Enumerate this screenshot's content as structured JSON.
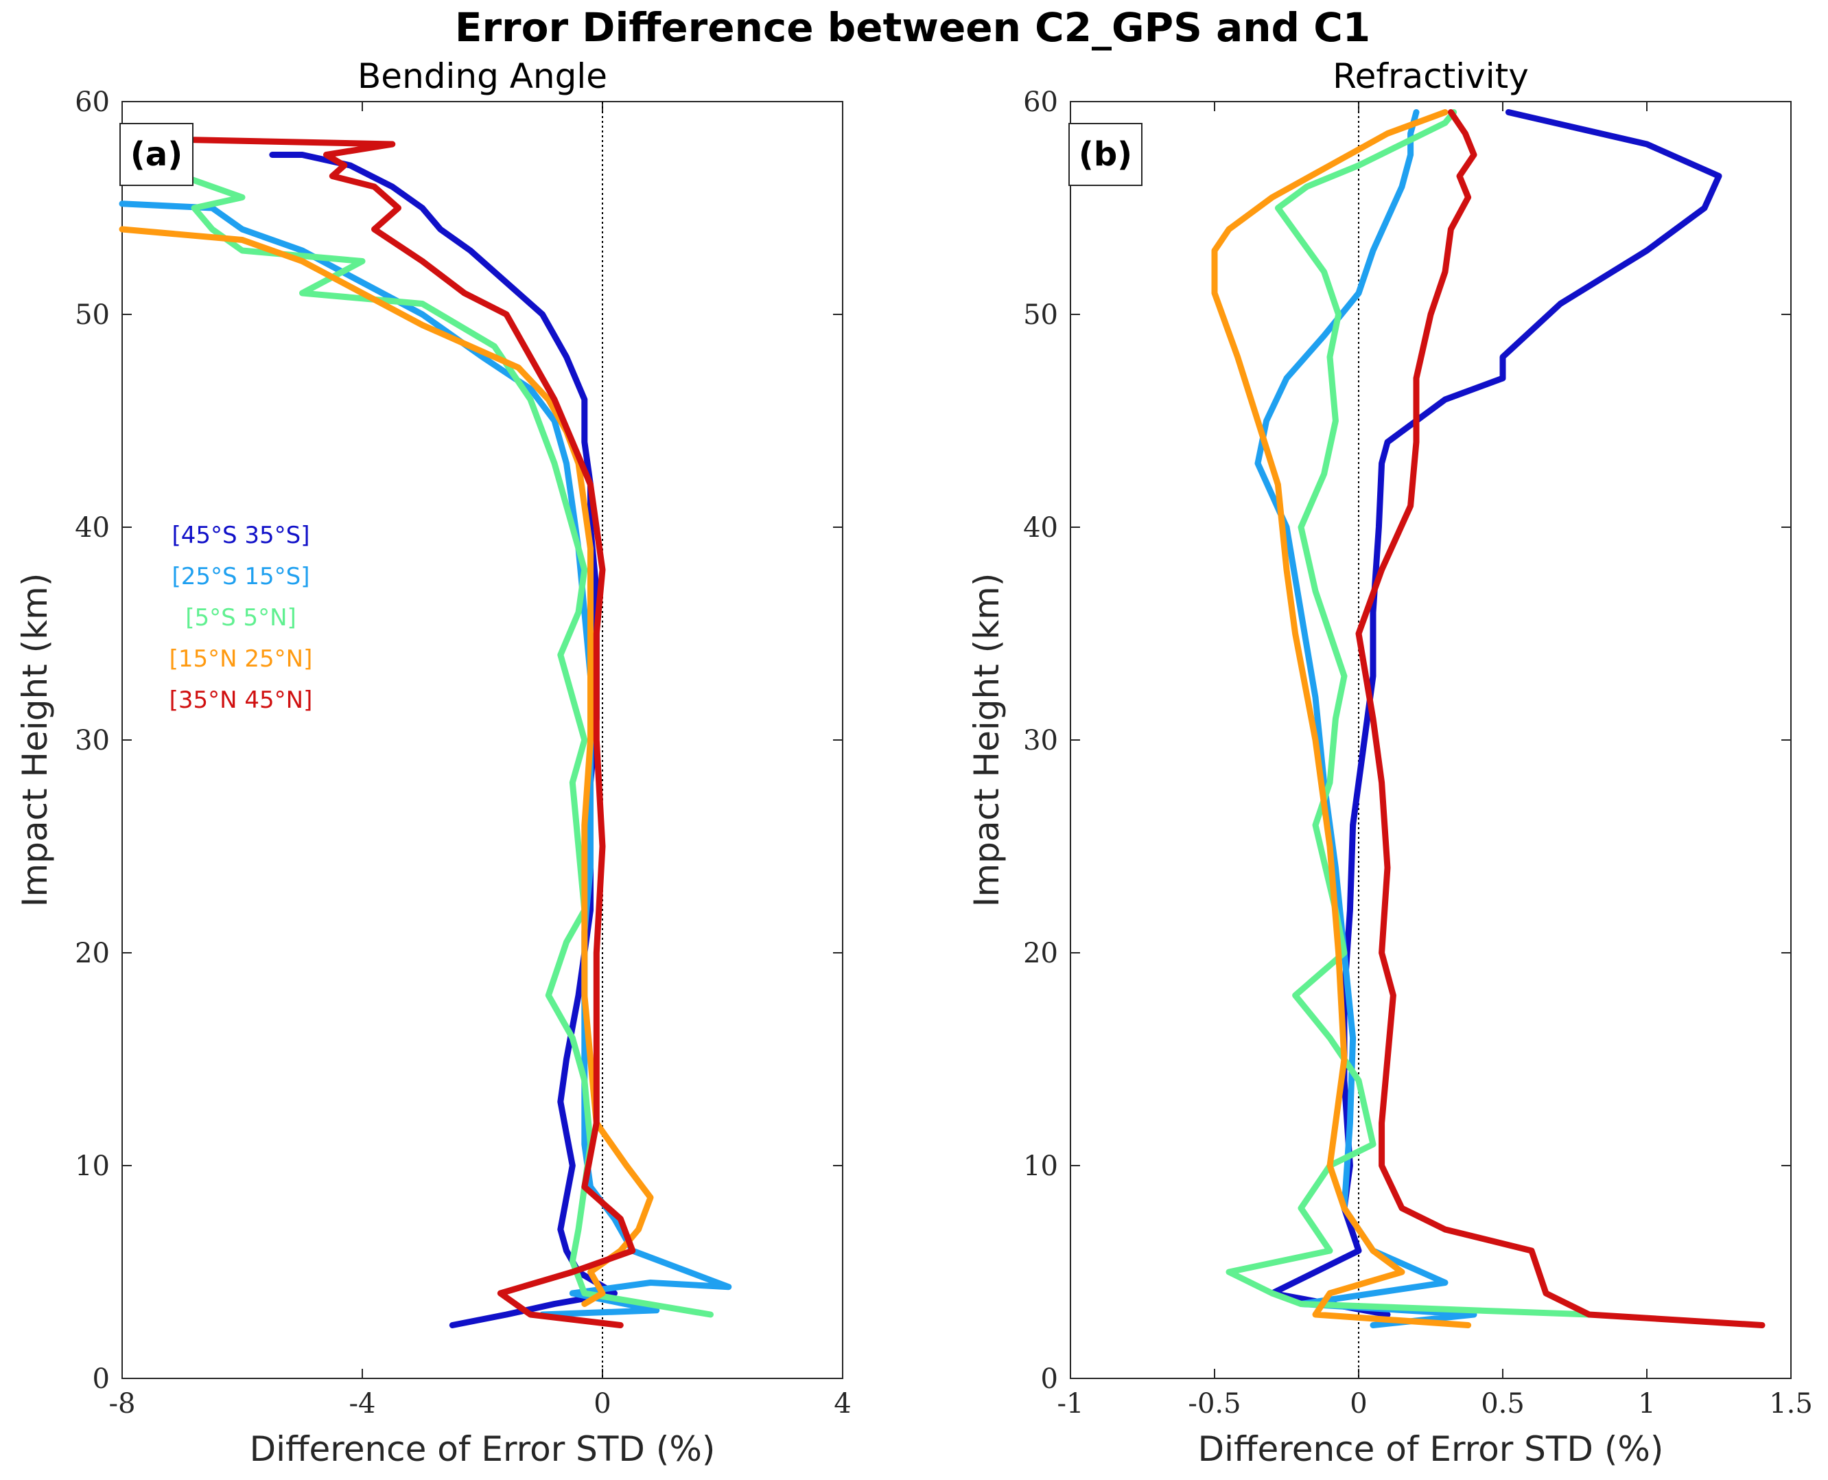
{
  "figure": {
    "title": "Error Difference between C2_GPS and C1"
  },
  "legend": {
    "entries": [
      {
        "label": "[45°S 35°S]",
        "color": "#1010c8"
      },
      {
        "label": "[25°S 15°S]",
        "color": "#1fa0f0"
      },
      {
        "label": "[5°S 5°N]",
        "color": "#60f090"
      },
      {
        "label": "[15°N 25°N]",
        "color": "#ff9a10"
      },
      {
        "label": "[35°N 45°N]",
        "color": "#d01010"
      }
    ]
  },
  "chart_data": [
    {
      "type": "line",
      "panel": "(a)",
      "title": "Bending Angle",
      "xlabel": "Difference of Error STD (%)",
      "ylabel": "Impact Height (km)",
      "xlim": [
        -8,
        4
      ],
      "ylim": [
        0,
        60
      ],
      "xticks": [
        "-8",
        "-4",
        "0",
        "4"
      ],
      "yticks": [
        "0",
        "10",
        "20",
        "30",
        "40",
        "50",
        "60"
      ],
      "zero_line": true,
      "series": [
        {
          "name": "[45°S 35°S]",
          "color": "#1010c8",
          "x": [
            -2.5,
            -1.6,
            -0.8,
            0.2,
            -0.4,
            -0.6,
            -0.7,
            -0.6,
            -0.5,
            -0.6,
            -0.7,
            -0.6,
            -0.4,
            -0.3,
            -0.2,
            -0.2,
            -0.2,
            -0.1,
            -0.1,
            -0.1,
            -0.2,
            -0.2,
            -0.3,
            -0.3,
            -0.6,
            -1.0,
            -1.6,
            -2.2,
            -2.7,
            -3.0,
            -3.5,
            -4.2,
            -5.0,
            -5.5
          ],
          "y": [
            2.5,
            3.0,
            3.5,
            4.0,
            5.0,
            6.0,
            7.0,
            8.5,
            10.0,
            11.5,
            13.0,
            15.0,
            18.0,
            20.0,
            22.0,
            25.0,
            28.0,
            31.0,
            34.0,
            37.0,
            40.0,
            42.0,
            44.0,
            46.0,
            48.0,
            50.0,
            51.5,
            53.0,
            54.0,
            55.0,
            56.0,
            57.0,
            57.5,
            57.5
          ]
        },
        {
          "name": "[25°S 15°S]",
          "color": "#1fa0f0",
          "x": [
            -1.0,
            0.9,
            -0.5,
            0.8,
            2.1,
            0.5,
            0.2,
            -0.2,
            -0.3,
            -0.3,
            -0.3,
            -0.3,
            -0.3,
            -0.2,
            -0.2,
            -0.2,
            -0.2,
            -0.3,
            -0.4,
            -0.5,
            -0.6,
            -0.8,
            -1.2,
            -2.0,
            -3.0,
            -4.0,
            -5.0,
            -6.0,
            -6.5,
            -8.0
          ],
          "y": [
            3.0,
            3.2,
            4.0,
            4.5,
            4.3,
            6.0,
            7.5,
            9.0,
            11.0,
            13.0,
            15.0,
            18.0,
            21.0,
            24.0,
            27.0,
            30.0,
            33.0,
            36.0,
            39.0,
            41.0,
            43.0,
            45.0,
            46.5,
            48.0,
            50.0,
            51.5,
            53.0,
            54.0,
            55.0,
            55.2
          ]
        },
        {
          "name": "[5°S 5°N]",
          "color": "#60f090",
          "x": [
            1.8,
            -0.3,
            -0.5,
            -0.4,
            -0.3,
            -0.2,
            -0.3,
            -0.5,
            -0.9,
            -0.6,
            -0.3,
            -0.4,
            -0.5,
            -0.3,
            -0.5,
            -0.7,
            -0.4,
            -0.3,
            -0.5,
            -0.8,
            -1.2,
            -1.8,
            -3.0,
            -5.0,
            -4.0,
            -6.0,
            -6.5,
            -6.8,
            -6.0,
            -7.0
          ],
          "y": [
            3.0,
            4.0,
            5.5,
            7.0,
            9.0,
            11.0,
            14.0,
            16.0,
            18.0,
            20.5,
            22.0,
            25.0,
            28.0,
            30.0,
            32.0,
            34.0,
            36.0,
            38.0,
            40.0,
            43.0,
            46.0,
            48.5,
            50.5,
            51.0,
            52.5,
            53.0,
            54.0,
            55.0,
            55.5,
            56.5
          ]
        },
        {
          "name": "[15°N 25°N]",
          "color": "#ff9a10",
          "x": [
            -0.3,
            0.0,
            -0.2,
            0.3,
            0.6,
            0.8,
            0.4,
            -0.1,
            -0.2,
            -0.3,
            -0.3,
            -0.3,
            -0.2,
            -0.2,
            -0.2,
            -0.2,
            -0.3,
            -0.4,
            -0.6,
            -0.9,
            -1.4,
            -2.2,
            -3.0,
            -4.0,
            -5.0,
            -6.0,
            -8.0
          ],
          "y": [
            3.5,
            4.0,
            5.0,
            6.0,
            7.0,
            8.5,
            10.0,
            12.0,
            15.0,
            18.0,
            22.0,
            26.0,
            30.0,
            34.0,
            37.0,
            39.0,
            41.0,
            43.0,
            44.5,
            46.0,
            47.5,
            48.5,
            49.5,
            51.0,
            52.5,
            53.5,
            54.0
          ]
        },
        {
          "name": "[35°N 45°N]",
          "color": "#d01010",
          "x": [
            0.3,
            -1.2,
            -1.7,
            -0.5,
            0.5,
            0.3,
            -0.3,
            -0.1,
            -0.1,
            -0.1,
            0.0,
            -0.1,
            -0.1,
            0.0,
            -0.2,
            -0.5,
            -0.8,
            -1.2,
            -1.6,
            -2.3,
            -3.0,
            -3.8,
            -3.4,
            -3.8,
            -4.5,
            -4.3,
            -4.6,
            -3.5,
            -6.8
          ],
          "y": [
            2.5,
            3.0,
            4.0,
            5.0,
            6.0,
            7.5,
            9.0,
            12.0,
            15.0,
            20.0,
            25.0,
            30.0,
            35.0,
            38.0,
            42.0,
            44.0,
            46.0,
            48.0,
            50.0,
            51.0,
            52.5,
            54.0,
            55.0,
            56.0,
            56.5,
            57.0,
            57.5,
            58.0,
            58.2
          ]
        }
      ]
    },
    {
      "type": "line",
      "panel": "(b)",
      "title": "Refractivity",
      "xlabel": "Difference of Error STD (%)",
      "ylabel": "Impact Height (km)",
      "xlim": [
        -1,
        1.5
      ],
      "ylim": [
        0,
        60
      ],
      "xticks": [
        "-1",
        "-0.5",
        "0",
        "0.5",
        "1",
        "1.5"
      ],
      "yticks": [
        "0",
        "10",
        "20",
        "30",
        "40",
        "50",
        "60"
      ],
      "zero_line": true,
      "series": [
        {
          "name": "[45°S 35°S]",
          "color": "#1010c8",
          "x": [
            0.1,
            -0.3,
            0.0,
            -0.05,
            -0.03,
            -0.05,
            -0.05,
            -0.03,
            -0.02,
            0.0,
            0.02,
            0.05,
            0.05,
            0.07,
            0.08,
            0.1,
            0.3,
            0.5,
            0.5,
            0.7,
            1.0,
            1.2,
            1.25,
            1.0,
            0.52
          ],
          "y": [
            3.0,
            4.0,
            6.0,
            8.0,
            10.0,
            14.0,
            18.0,
            22.0,
            26.0,
            28.0,
            30.0,
            33.0,
            36.0,
            40.0,
            43.0,
            44.0,
            46.0,
            47.0,
            48.0,
            50.5,
            53.0,
            55.0,
            56.5,
            58.0,
            59.5
          ]
        },
        {
          "name": "[25°S 15°S]",
          "color": "#1fa0f0",
          "x": [
            0.05,
            0.4,
            -0.2,
            0.3,
            0.05,
            -0.05,
            -0.03,
            -0.02,
            -0.05,
            -0.08,
            -0.12,
            -0.15,
            -0.2,
            -0.25,
            -0.35,
            -0.32,
            -0.25,
            -0.12,
            0.0,
            0.05,
            0.1,
            0.15,
            0.18,
            0.18,
            0.2
          ],
          "y": [
            2.5,
            3.0,
            3.5,
            4.5,
            6.0,
            8.0,
            12.0,
            16.0,
            20.0,
            24.0,
            28.0,
            32.0,
            36.0,
            40.0,
            43.0,
            45.0,
            47.0,
            49.0,
            51.0,
            53.0,
            54.5,
            56.0,
            57.5,
            58.5,
            59.5
          ]
        },
        {
          "name": "[5°S 5°N]",
          "color": "#60f090",
          "x": [
            0.8,
            -0.2,
            -0.3,
            -0.45,
            -0.1,
            -0.2,
            -0.1,
            0.05,
            0.0,
            -0.1,
            -0.22,
            -0.05,
            -0.08,
            -0.15,
            -0.1,
            -0.08,
            -0.05,
            -0.15,
            -0.2,
            -0.12,
            -0.08,
            -0.1,
            -0.07,
            -0.12,
            -0.2,
            -0.28,
            -0.18,
            0.0,
            0.15,
            0.3,
            0.33
          ],
          "y": [
            3.0,
            3.5,
            4.0,
            5.0,
            6.0,
            8.0,
            10.0,
            11.0,
            14.0,
            16.0,
            18.0,
            20.0,
            22.0,
            26.0,
            28.0,
            31.0,
            33.0,
            37.0,
            40.0,
            42.5,
            45.0,
            48.0,
            50.0,
            52.0,
            53.5,
            55.0,
            56.0,
            57.0,
            58.0,
            59.0,
            59.5
          ]
        },
        {
          "name": "[15°N 25°N]",
          "color": "#ff9a10",
          "x": [
            0.38,
            -0.15,
            -0.1,
            0.15,
            0.05,
            -0.05,
            -0.1,
            -0.05,
            -0.07,
            -0.1,
            -0.15,
            -0.22,
            -0.25,
            -0.28,
            -0.35,
            -0.42,
            -0.5,
            -0.5,
            -0.45,
            -0.3,
            -0.1,
            0.1,
            0.3
          ],
          "y": [
            2.5,
            3.0,
            4.0,
            5.0,
            6.0,
            8.0,
            10.0,
            15.0,
            20.0,
            25.0,
            30.0,
            35.0,
            38.0,
            42.0,
            45.0,
            48.0,
            51.0,
            53.0,
            54.0,
            55.5,
            57.0,
            58.5,
            59.5
          ]
        },
        {
          "name": "[35°N 45°N]",
          "color": "#d01010",
          "x": [
            1.4,
            0.8,
            0.65,
            0.6,
            0.3,
            0.15,
            0.08,
            0.08,
            0.1,
            0.12,
            0.08,
            0.1,
            0.08,
            0.05,
            0.0,
            0.08,
            0.18,
            0.2,
            0.2,
            0.25,
            0.3,
            0.32,
            0.38,
            0.35,
            0.4,
            0.37,
            0.32
          ],
          "y": [
            2.5,
            3.0,
            4.0,
            6.0,
            7.0,
            8.0,
            10.0,
            12.0,
            15.0,
            18.0,
            20.0,
            24.0,
            28.0,
            31.0,
            35.0,
            38.0,
            41.0,
            44.0,
            47.0,
            50.0,
            52.0,
            54.0,
            55.5,
            56.5,
            57.5,
            58.5,
            59.5
          ]
        }
      ]
    }
  ]
}
